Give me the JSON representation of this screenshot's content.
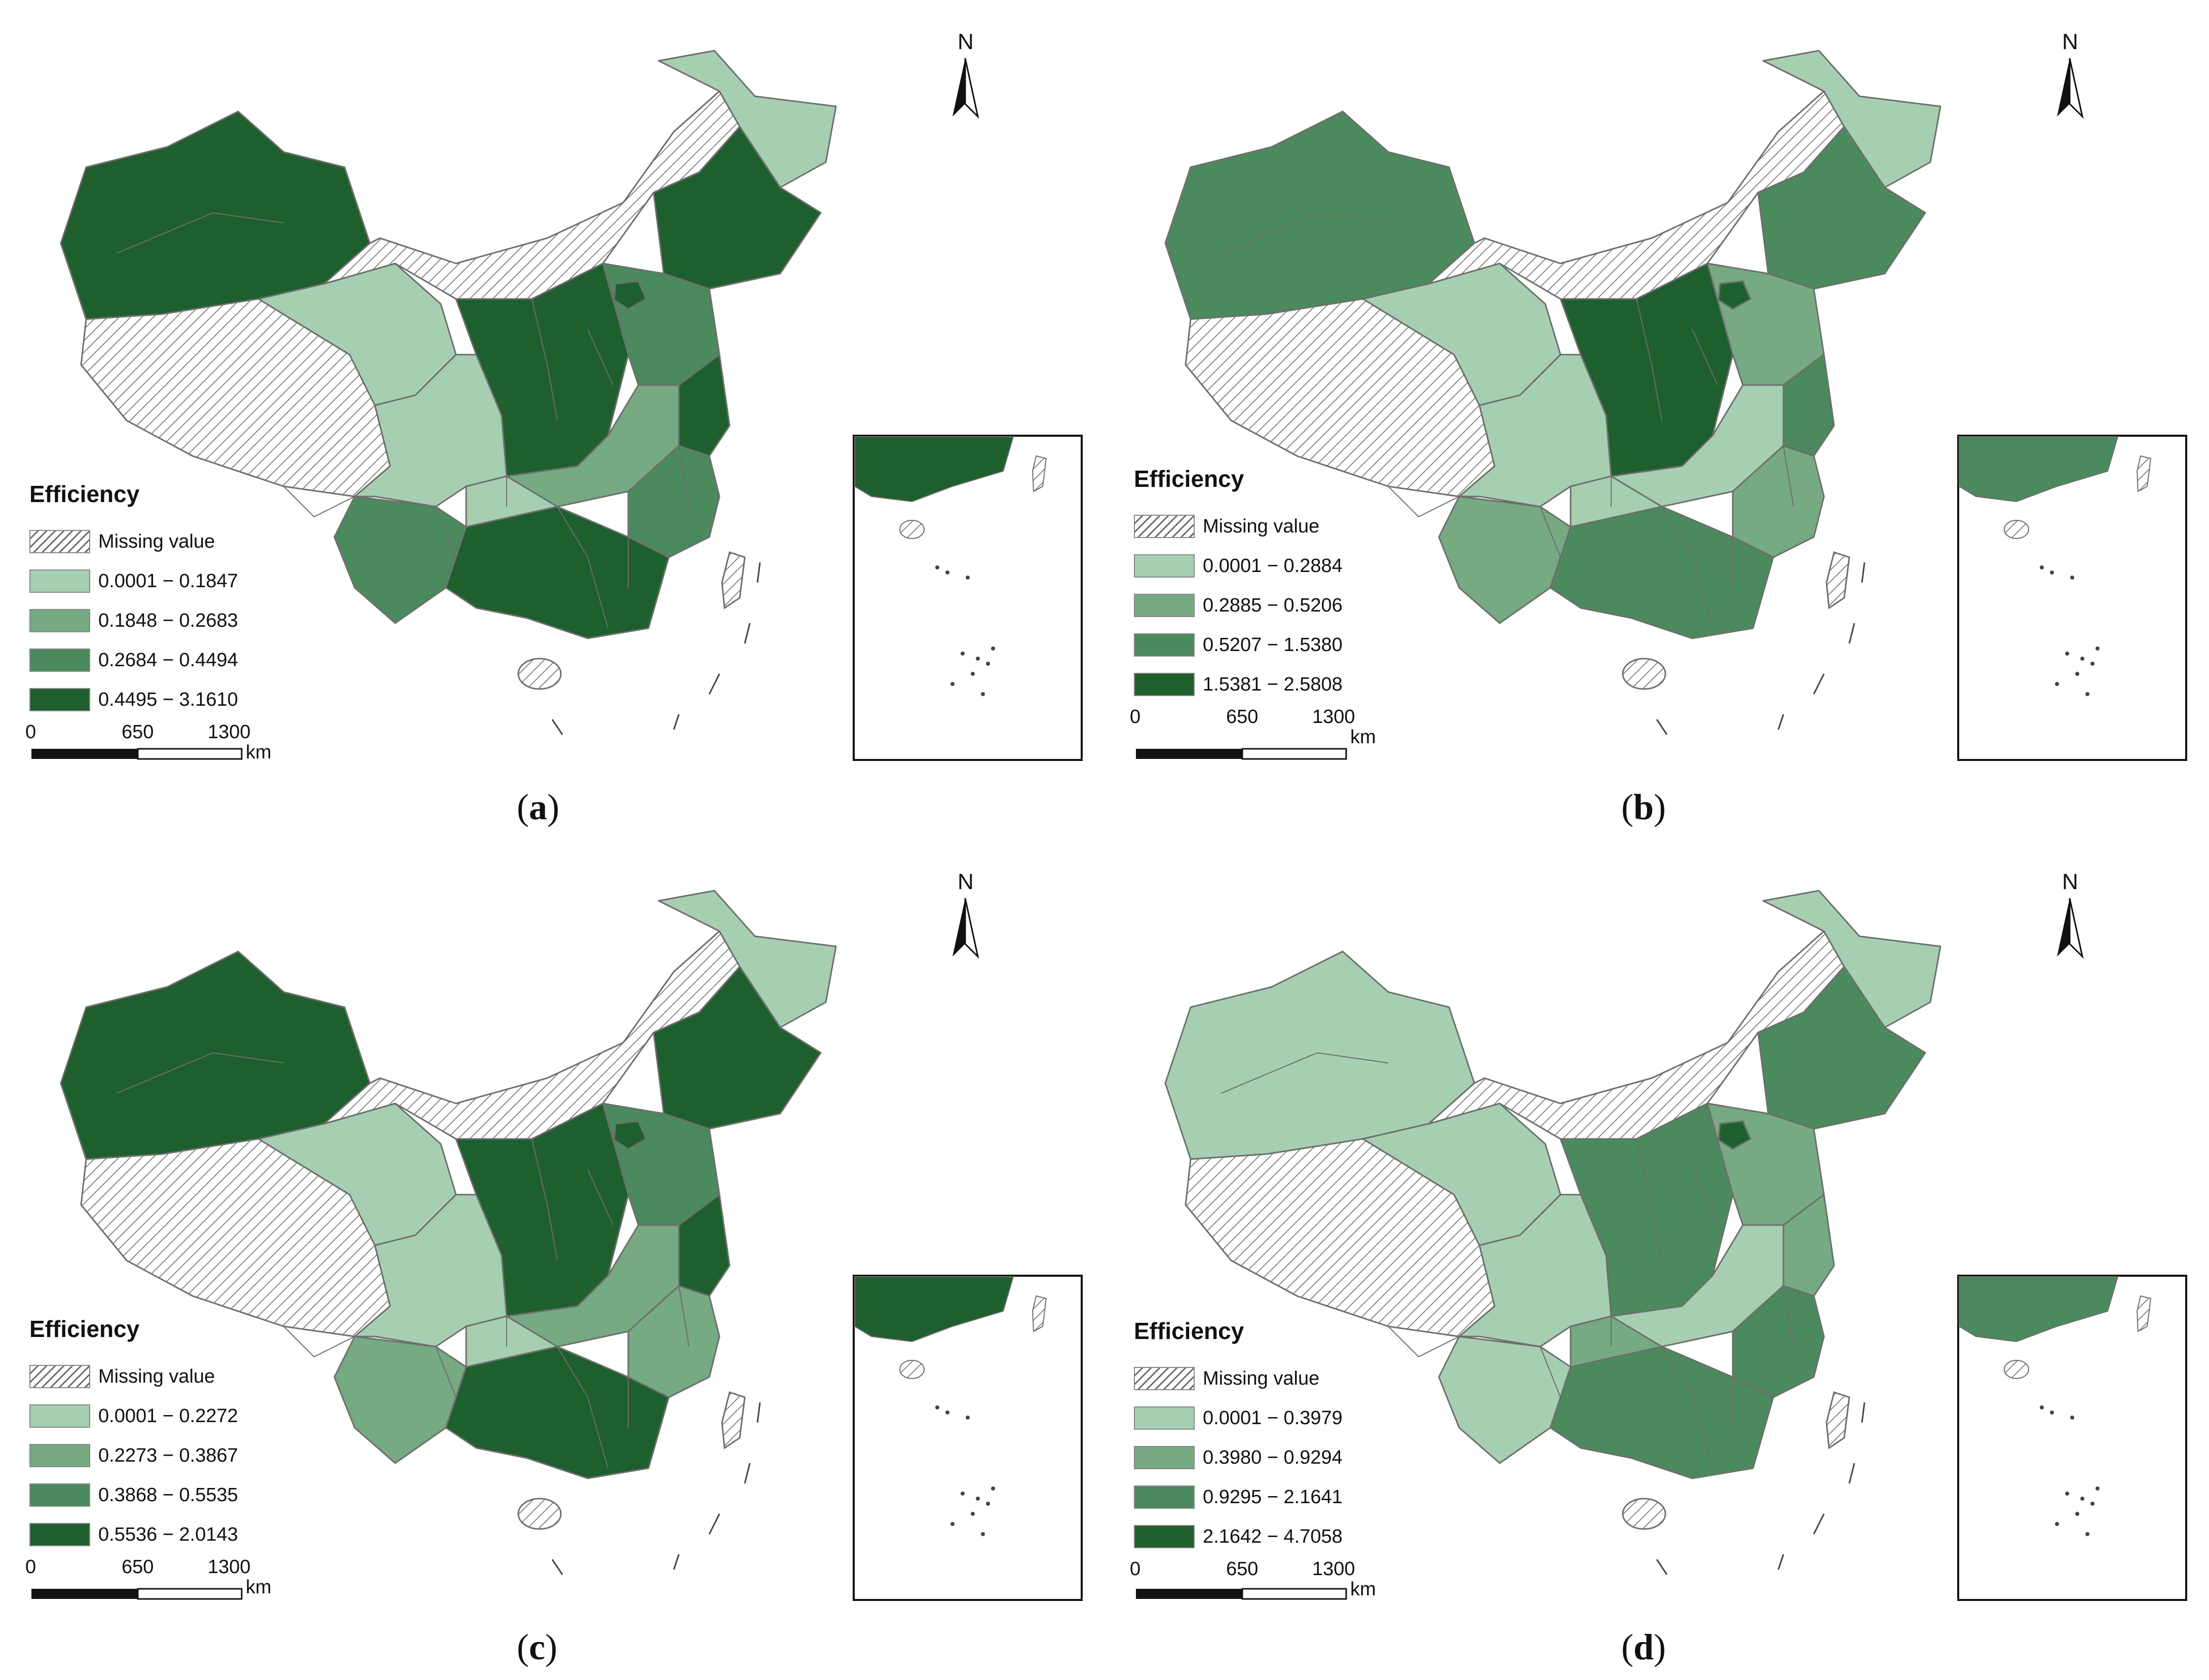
{
  "colors": {
    "level1": "#a6cfb2",
    "level2": "#76aa82",
    "level3": "#4b8a5c",
    "level4": "#1e5f2e",
    "missing": "hatch-gray",
    "border": "#6e6e6e"
  },
  "panels": [
    {
      "id": "a",
      "caption_letter": "a",
      "legend_title": "Efficiency",
      "missing_label": "Missing value",
      "classes": [
        "0.0001 − 0.1847",
        "0.1848 − 0.2683",
        "0.2684 − 0.4494",
        "0.4495 − 3.1610"
      ],
      "scale": {
        "ticks": [
          "0",
          "650",
          "1300"
        ],
        "unit": "km"
      },
      "north_label": "N",
      "regions": {
        "northwest": 4,
        "tibet": 0,
        "qinghai": 1,
        "inner_mongolia": 0,
        "northeast_north": 1,
        "northeast_south": 4,
        "north_central": 4,
        "north_plain": 3,
        "beijing": 4,
        "east_coast": 4,
        "sichuan": 1,
        "central": 2,
        "yunnan": 3,
        "guangxi_guangdong": 4,
        "southeast": 3,
        "south_central": 1
      }
    },
    {
      "id": "b",
      "caption_letter": "b",
      "legend_title": "Efficiency",
      "missing_label": "Missing value",
      "classes": [
        "0.0001 − 0.2884",
        "0.2885 − 0.5206",
        "0.5207 − 1.5380",
        "1.5381 − 2.5808"
      ],
      "scale": {
        "ticks": [
          "0",
          "650",
          "1300"
        ],
        "unit": "km"
      },
      "north_label": "N",
      "regions": {
        "northwest": 3,
        "tibet": 0,
        "qinghai": 1,
        "inner_mongolia": 0,
        "northeast_north": 1,
        "northeast_south": 3,
        "north_central": 4,
        "north_plain": 2,
        "beijing": 4,
        "east_coast": 3,
        "sichuan": 1,
        "central": 1,
        "yunnan": 2,
        "guangxi_guangdong": 3,
        "southeast": 2,
        "south_central": 1
      }
    },
    {
      "id": "c",
      "caption_letter": "c",
      "legend_title": "Efficiency",
      "missing_label": "Missing value",
      "classes": [
        "0.0001 − 0.2272",
        "0.2273 − 0.3867",
        "0.3868 − 0.5535",
        "0.5536 − 2.0143"
      ],
      "scale": {
        "ticks": [
          "0",
          "650",
          "1300"
        ],
        "unit": "km"
      },
      "north_label": "N",
      "regions": {
        "northwest": 4,
        "tibet": 0,
        "qinghai": 1,
        "inner_mongolia": 0,
        "northeast_north": 1,
        "northeast_south": 4,
        "north_central": 4,
        "north_plain": 3,
        "beijing": 4,
        "east_coast": 4,
        "sichuan": 1,
        "central": 2,
        "yunnan": 2,
        "guangxi_guangdong": 4,
        "southeast": 2,
        "south_central": 1
      }
    },
    {
      "id": "d",
      "caption_letter": "d",
      "legend_title": "Efficiency",
      "missing_label": "Missing value",
      "classes": [
        "0.0001 − 0.3979",
        "0.3980 − 0.9294",
        "0.9295 − 2.1641",
        "2.1642 − 4.7058"
      ],
      "scale": {
        "ticks": [
          "0",
          "650",
          "1300"
        ],
        "unit": "km"
      },
      "north_label": "N",
      "regions": {
        "northwest": 1,
        "tibet": 0,
        "qinghai": 1,
        "inner_mongolia": 0,
        "northeast_north": 1,
        "northeast_south": 3,
        "north_central": 3,
        "north_plain": 2,
        "beijing": 4,
        "east_coast": 2,
        "sichuan": 1,
        "central": 1,
        "yunnan": 1,
        "guangxi_guangdong": 3,
        "southeast": 3,
        "south_central": 2
      }
    }
  ]
}
